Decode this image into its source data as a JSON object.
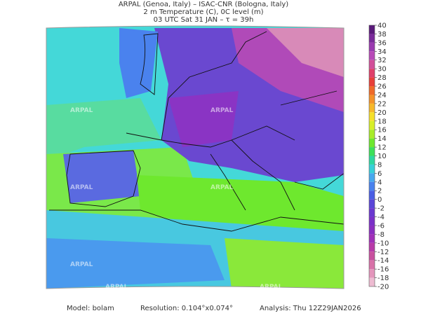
{
  "header": {
    "lines": [
      "ARPAL (Genoa, Italy)  –  ISAC-CNR (Bologna, Italy)",
      "2 m Temperature (C), 0C level (m)",
      "03 UTC Sat 31 JAN  –  τ = 39h"
    ]
  },
  "colorbar": {
    "ticks": [
      40,
      38,
      36,
      34,
      32,
      30,
      28,
      26,
      24,
      22,
      20,
      18,
      16,
      14,
      12,
      10,
      8,
      6,
      4,
      2,
      0,
      -2,
      -4,
      -6,
      -8,
      -10,
      -12,
      -14,
      -16,
      -18,
      -20
    ],
    "colors": [
      "#5a1a7a",
      "#7a2a9a",
      "#9a3ab0",
      "#b84ab8",
      "#d2509a",
      "#e0406a",
      "#e8403a",
      "#ef6a2a",
      "#f4922a",
      "#f7b82a",
      "#f6e02a",
      "#d8ef2a",
      "#a8ec2a",
      "#6ee82e",
      "#3ee05a",
      "#2ed8a0",
      "#38d0d8",
      "#48a8ee",
      "#4a82ee",
      "#4a5ee4",
      "#5a46d8",
      "#6a38d0",
      "#7a30c8",
      "#8a2ec0",
      "#a030b8",
      "#b83aa8",
      "#c8509e",
      "#d872a8",
      "#e496bc",
      "#eebcd2"
    ]
  },
  "watermark": "ARPAL",
  "footer": {
    "model": "Model: bolam",
    "resolution": "Resolution: 0.104°x0.074°",
    "analysis": "Analysis: Thu 12Z29JAN2026"
  }
}
